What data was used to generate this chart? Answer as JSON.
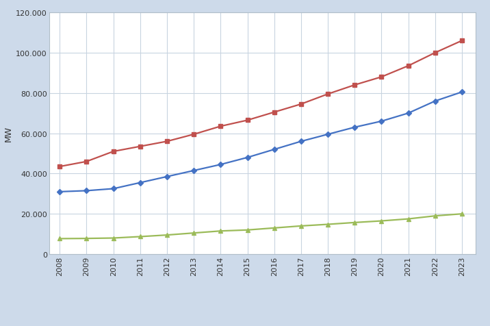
{
  "years": [
    2008,
    2009,
    2010,
    2011,
    2012,
    2013,
    2014,
    2015,
    2016,
    2017,
    2018,
    2019,
    2020,
    2021,
    2022,
    2023
  ],
  "maksimum_talep": [
    31000,
    31500,
    32500,
    35500,
    38500,
    41500,
    44500,
    48000,
    52000,
    56000,
    59500,
    63000,
    66000,
    70000,
    76000,
    80500
  ],
  "kurulu_guc": [
    43500,
    46000,
    51000,
    53500,
    56000,
    59500,
    63500,
    66500,
    70500,
    74500,
    79500,
    84000,
    88000,
    93500,
    100000,
    106000
  ],
  "baglanabilir_res": [
    7700,
    7800,
    8000,
    8700,
    9500,
    10500,
    11500,
    12000,
    13000,
    14000,
    14800,
    15700,
    16500,
    17500,
    19000,
    20000
  ],
  "line_colors": {
    "maksimum_talep": "#4472C4",
    "kurulu_guc": "#C0504D",
    "baglanabilir_res": "#9BBB59"
  },
  "ylabel": "MW",
  "ylim": [
    0,
    120000
  ],
  "ytick_step": 20000,
  "fig_bg_color": "#cddaea",
  "plot_bg_color": "#ffffff",
  "grid_color": "#c8d4e0",
  "spine_color": "#b0bec8"
}
